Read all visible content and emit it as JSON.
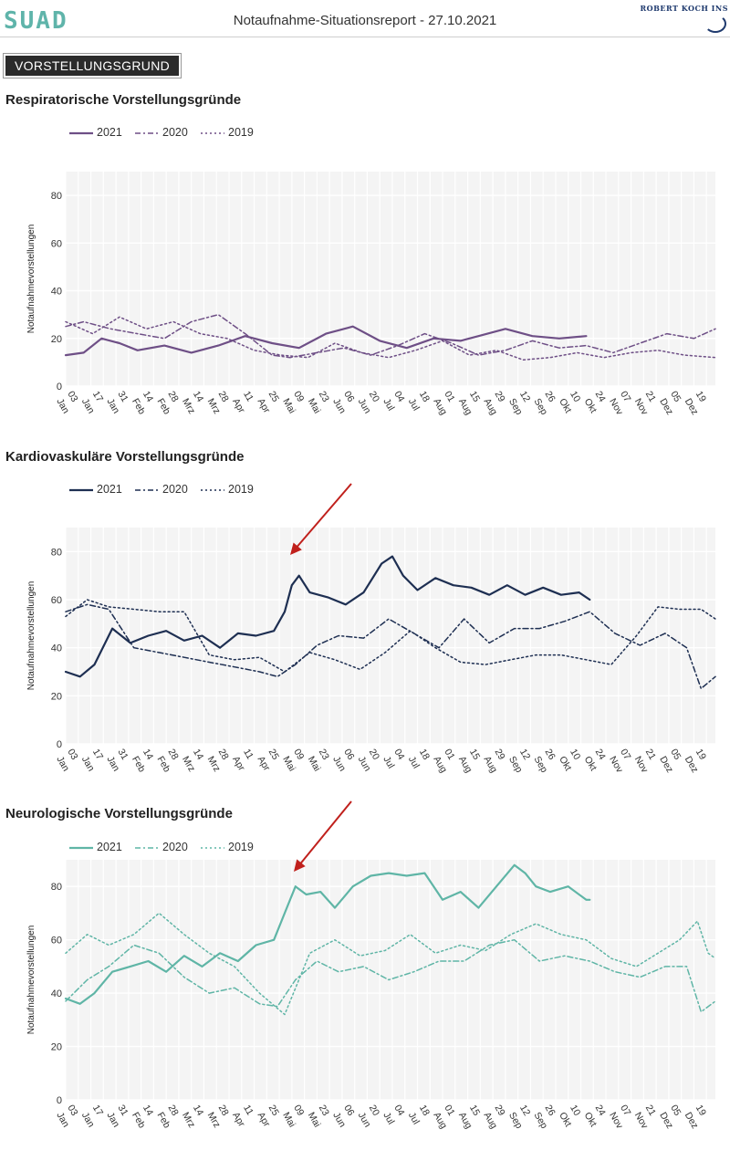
{
  "header": {
    "logo": "SUAD",
    "title": "Notaufnahme-Situationsreport - 27.10.2021",
    "rki": "ROBERT KOCH INS"
  },
  "section": "VORSTELLUNGSGRUND",
  "x_ticks": [
    "03 Jan",
    "17 Jan",
    "31 Jan",
    "14 Feb",
    "28 Feb",
    "14 Mrz",
    "28 Mrz",
    "11 Apr",
    "25 Apr",
    "09 Mai",
    "23 Mai",
    "06 Jun",
    "20 Jun",
    "04 Jul",
    "18 Jul",
    "01 Aug",
    "15 Aug",
    "29 Aug",
    "12 Sep",
    "26 Sep",
    "10 Okt",
    "24 Okt",
    "07 Nov",
    "21 Nov",
    "05 Dez",
    "19 Dez"
  ],
  "charts": {
    "resp": {
      "title": "Respiratorische Vorstellungsgründe",
      "legend": [
        "2021",
        "2020",
        "2019"
      ],
      "color": "#6e4f86"
    },
    "kardio": {
      "title": "Kardiovaskuläre Vorstellungsgründe",
      "legend": [
        "2021",
        "2020",
        "2019"
      ],
      "color": "#1e2f52"
    },
    "neuro": {
      "title": "Neurologische Vorstellungsgründe",
      "legend": [
        "2021",
        "2020",
        "2019"
      ],
      "color": "#5fb5a6"
    }
  },
  "chart_data": [
    {
      "type": "line",
      "title": "Respiratorische Vorstellungsgründe",
      "ylabel": "Notaufnahmevorstellungen",
      "ylim": [
        0,
        90
      ],
      "y_ticks": [
        0,
        20,
        40,
        60,
        80
      ],
      "grid": true,
      "legend_position": "top-left",
      "x_unit": "days from 03 Jan",
      "series": [
        {
          "name": "2021",
          "style": "solid",
          "x": [
            0,
            10,
            20,
            30,
            40,
            55,
            70,
            85,
            100,
            115,
            130,
            145,
            160,
            175,
            190,
            205,
            220,
            230,
            245,
            260,
            275,
            290
          ],
          "y": [
            13,
            14,
            20,
            18,
            15,
            17,
            14,
            17,
            21,
            18,
            16,
            22,
            25,
            19,
            16,
            20,
            19,
            21,
            24,
            21,
            20,
            21
          ]
        },
        {
          "name": "2020",
          "style": "dashdot",
          "x": [
            0,
            10,
            25,
            40,
            55,
            70,
            85,
            100,
            115,
            125,
            140,
            155,
            170,
            185,
            200,
            215,
            230,
            245,
            260,
            275,
            290,
            305,
            320,
            335,
            350,
            362
          ],
          "y": [
            25,
            27,
            24,
            22,
            20,
            27,
            30,
            22,
            13,
            12,
            14,
            16,
            13,
            17,
            22,
            18,
            13,
            15,
            19,
            16,
            17,
            14,
            18,
            22,
            20,
            24
          ]
        },
        {
          "name": "2019",
          "style": "dotted",
          "x": [
            0,
            15,
            30,
            45,
            60,
            75,
            90,
            105,
            120,
            135,
            150,
            165,
            180,
            195,
            210,
            225,
            240,
            255,
            270,
            285,
            300,
            315,
            330,
            345,
            362
          ],
          "y": [
            27,
            22,
            29,
            24,
            27,
            22,
            20,
            15,
            13,
            12,
            18,
            14,
            12,
            15,
            19,
            13,
            15,
            11,
            12,
            14,
            12,
            14,
            15,
            13,
            12
          ]
        }
      ]
    },
    {
      "type": "line",
      "title": "Kardiovaskuläre Vorstellungsgründe",
      "ylabel": "Notaufnahmevorstellungen",
      "ylim": [
        0,
        90
      ],
      "y_ticks": [
        0,
        20,
        40,
        60,
        80
      ],
      "grid": true,
      "legend_position": "top-left",
      "x_unit": "days from 03 Jan",
      "series": [
        {
          "name": "2021",
          "style": "solid",
          "x": [
            0,
            8,
            16,
            26,
            36,
            46,
            56,
            66,
            76,
            86,
            96,
            106,
            116,
            122,
            126,
            130,
            136,
            146,
            156,
            166,
            176,
            182,
            188,
            196,
            206,
            216,
            226,
            236,
            246,
            256,
            266,
            276,
            286,
            292
          ],
          "y": [
            30,
            28,
            33,
            48,
            42,
            45,
            47,
            43,
            45,
            40,
            46,
            45,
            47,
            55,
            66,
            70,
            63,
            61,
            58,
            63,
            75,
            78,
            70,
            64,
            69,
            66,
            65,
            62,
            66,
            62,
            65,
            62,
            63,
            60
          ]
        },
        {
          "name": "2020",
          "style": "dashdot",
          "x": [
            0,
            12,
            24,
            38,
            52,
            66,
            80,
            94,
            108,
            118,
            128,
            140,
            152,
            166,
            180,
            194,
            208,
            222,
            236,
            250,
            264,
            278,
            292,
            306,
            320,
            334,
            346,
            354,
            362
          ],
          "y": [
            55,
            58,
            56,
            40,
            38,
            36,
            34,
            32,
            30,
            28,
            33,
            41,
            45,
            44,
            52,
            46,
            40,
            52,
            42,
            48,
            48,
            51,
            55,
            46,
            41,
            46,
            40,
            23,
            28
          ]
        },
        {
          "name": "2019",
          "style": "dotted",
          "x": [
            0,
            12,
            24,
            38,
            52,
            66,
            80,
            94,
            108,
            122,
            136,
            150,
            164,
            178,
            192,
            206,
            220,
            234,
            248,
            262,
            276,
            290,
            304,
            318,
            330,
            342,
            354,
            362
          ],
          "y": [
            53,
            60,
            57,
            56,
            55,
            55,
            37,
            35,
            36,
            30,
            38,
            35,
            31,
            38,
            47,
            40,
            34,
            33,
            35,
            37,
            37,
            35,
            33,
            45,
            57,
            56,
            56,
            52
          ]
        }
      ]
    },
    {
      "type": "line",
      "title": "Neurologische Vorstellungsgründe",
      "ylabel": "Notaufnahmevorstellungen",
      "ylim": [
        0,
        90
      ],
      "y_ticks": [
        0,
        20,
        40,
        60,
        80
      ],
      "grid": true,
      "legend_position": "top-left",
      "x_unit": "days from 03 Jan",
      "series": [
        {
          "name": "2021",
          "style": "solid",
          "x": [
            0,
            8,
            16,
            26,
            36,
            46,
            56,
            66,
            76,
            86,
            96,
            106,
            116,
            122,
            128,
            134,
            142,
            150,
            160,
            170,
            180,
            190,
            200,
            210,
            220,
            230,
            240,
            250,
            256,
            262,
            270,
            280,
            290,
            292
          ],
          "y": [
            38,
            36,
            40,
            48,
            50,
            52,
            48,
            54,
            50,
            55,
            52,
            58,
            60,
            70,
            80,
            77,
            78,
            72,
            80,
            84,
            85,
            84,
            85,
            75,
            78,
            72,
            80,
            88,
            85,
            80,
            78,
            80,
            75,
            75
          ]
        },
        {
          "name": "2020",
          "style": "dashdot",
          "x": [
            0,
            12,
            24,
            38,
            52,
            66,
            80,
            94,
            108,
            118,
            128,
            140,
            152,
            166,
            180,
            194,
            208,
            222,
            236,
            250,
            264,
            278,
            292,
            306,
            320,
            334,
            346,
            354,
            362
          ],
          "y": [
            37,
            45,
            50,
            58,
            55,
            46,
            40,
            42,
            36,
            35,
            45,
            52,
            48,
            50,
            45,
            48,
            52,
            52,
            58,
            60,
            52,
            54,
            52,
            48,
            46,
            50,
            50,
            33,
            37
          ]
        },
        {
          "name": "2019",
          "style": "dotted",
          "x": [
            0,
            12,
            24,
            38,
            52,
            66,
            80,
            94,
            108,
            122,
            136,
            150,
            164,
            178,
            192,
            206,
            220,
            234,
            248,
            262,
            276,
            290,
            304,
            318,
            330,
            342,
            352,
            358,
            362
          ],
          "y": [
            55,
            62,
            58,
            62,
            70,
            62,
            55,
            50,
            40,
            32,
            55,
            60,
            54,
            56,
            62,
            55,
            58,
            56,
            62,
            66,
            62,
            60,
            53,
            50,
            55,
            60,
            67,
            55,
            53
          ]
        }
      ]
    }
  ]
}
